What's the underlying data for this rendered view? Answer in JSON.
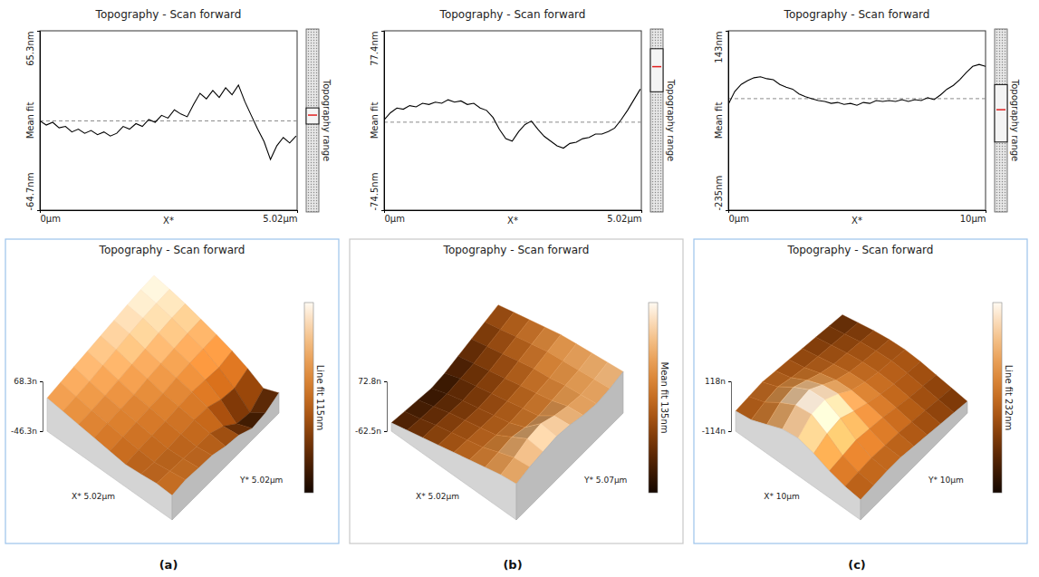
{
  "chart_data": [
    {
      "type": "line",
      "panel": "(a)",
      "title": "Topography - Scan forward",
      "x_label": "X*",
      "y_label": "Mean fit",
      "side_label": "Topography range",
      "color": "#000000",
      "x": [
        0,
        0.125,
        0.25,
        0.375,
        0.5,
        0.625,
        0.75,
        0.875,
        1,
        1.125,
        1.25,
        1.375,
        1.5,
        1.625,
        1.75,
        1.875,
        2,
        2.125,
        2.25,
        2.375,
        2.5,
        2.625,
        2.75,
        2.875,
        3,
        3.125,
        3.25,
        3.375,
        3.5,
        3.625,
        3.75,
        3.875,
        4,
        4.125,
        4.25,
        4.375,
        4.5,
        4.625,
        4.75,
        4.875,
        5
      ],
      "values": [
        0,
        -3,
        -1,
        -5,
        -4,
        -8,
        -6,
        -9,
        -7,
        -10,
        -8,
        -11,
        -9,
        -4,
        -6,
        -2,
        -4,
        1,
        -1,
        4,
        2,
        8,
        5,
        3,
        12,
        20,
        16,
        22,
        17,
        24,
        19,
        26,
        14,
        4,
        -6,
        -15,
        -28,
        -18,
        -12,
        -16,
        -11
      ],
      "mean_line": 0,
      "xlim": [
        0,
        5.02
      ],
      "xticks": [
        {
          "value": 0,
          "label": "0µm"
        },
        {
          "value": 5.02,
          "label": "5.02µm"
        }
      ],
      "ylim": [
        -64.7,
        65.3
      ],
      "yticks": [
        {
          "value": -64.7,
          "label": "-64.7nm"
        },
        {
          "value": 65.3,
          "label": "65.3nm"
        }
      ]
    },
    {
      "type": "surface",
      "title": "Topography - Scan forward",
      "x_label": "X* 5.02µm",
      "y_label": "Y* 5.02µm",
      "colorbar_label": "Line fit 115nm",
      "z": [
        [
          30,
          25,
          20,
          15,
          10,
          5,
          8,
          12,
          10
        ],
        [
          35,
          28,
          22,
          18,
          12,
          8,
          5,
          10,
          15
        ],
        [
          40,
          32,
          25,
          20,
          15,
          10,
          6,
          8,
          12
        ],
        [
          45,
          38,
          30,
          22,
          18,
          12,
          8,
          5,
          10
        ],
        [
          50,
          44,
          35,
          28,
          20,
          15,
          10,
          4,
          0
        ],
        [
          55,
          50,
          40,
          32,
          25,
          18,
          8,
          -10,
          -5
        ],
        [
          60,
          55,
          46,
          36,
          28,
          15,
          -5,
          -35,
          -20
        ],
        [
          64,
          58,
          50,
          40,
          30,
          12,
          -10,
          -40,
          -15
        ],
        [
          66,
          60,
          52,
          42,
          32,
          20,
          5,
          -15,
          0
        ]
      ],
      "zlim": [
        -46.3,
        68.3
      ],
      "zticks": [
        {
          "value": -46.3,
          "label": "-46.3n"
        },
        {
          "value": 68.3,
          "label": "68.3n"
        }
      ]
    },
    {
      "type": "line",
      "panel": "(b)",
      "title": "Topography - Scan forward",
      "x_label": "X*",
      "y_label": "Mean fit",
      "side_label": "Topography range",
      "color": "#000000",
      "x": [
        0,
        0.125,
        0.25,
        0.375,
        0.5,
        0.625,
        0.75,
        0.875,
        1,
        1.125,
        1.25,
        1.375,
        1.5,
        1.625,
        1.75,
        1.875,
        2,
        2.125,
        2.25,
        2.375,
        2.5,
        2.625,
        2.75,
        2.875,
        3,
        3.125,
        3.25,
        3.375,
        3.5,
        3.625,
        3.75,
        3.875,
        4,
        4.125,
        4.25,
        4.375,
        4.5,
        4.625,
        4.75,
        4.875,
        5
      ],
      "values": [
        2,
        8,
        12,
        11,
        14,
        13,
        16,
        15,
        17,
        16,
        19,
        17,
        18,
        15,
        16,
        12,
        10,
        4,
        -6,
        -14,
        -16,
        -8,
        -2,
        1,
        -6,
        -12,
        -16,
        -20,
        -22,
        -18,
        -17,
        -14,
        -13,
        -10,
        -10,
        -8,
        -5,
        2,
        10,
        19,
        28
      ],
      "mean_line": 0,
      "xlim": [
        0,
        5.02
      ],
      "xticks": [
        {
          "value": 0,
          "label": "0µm"
        },
        {
          "value": 5.02,
          "label": "5.02µm"
        }
      ],
      "ylim": [
        -74.5,
        77.4
      ],
      "yticks": [
        {
          "value": -74.5,
          "label": "-74.5nm"
        },
        {
          "value": 77.4,
          "label": "77.4nm"
        }
      ]
    },
    {
      "type": "surface",
      "title": "Topography - Scan forward",
      "x_label": "X* 5.02µm",
      "y_label": "Y* 5.07µm",
      "colorbar_label": "Mean fit 135nm",
      "z": [
        [
          -40,
          -30,
          -20,
          -10,
          0,
          10,
          20,
          30,
          35
        ],
        [
          -45,
          -35,
          -22,
          -12,
          -2,
          8,
          25,
          40,
          45
        ],
        [
          -50,
          -38,
          -25,
          -15,
          -5,
          5,
          30,
          55,
          50
        ],
        [
          -55,
          -40,
          -28,
          -18,
          -8,
          2,
          20,
          60,
          55
        ],
        [
          -50,
          -35,
          -25,
          -15,
          -5,
          5,
          15,
          45,
          50
        ],
        [
          -40,
          -30,
          -20,
          -10,
          0,
          10,
          20,
          35,
          40
        ],
        [
          -30,
          -20,
          -10,
          0,
          10,
          15,
          25,
          30,
          35
        ],
        [
          -20,
          -10,
          0,
          10,
          20,
          25,
          30,
          35,
          40
        ],
        [
          -10,
          0,
          10,
          20,
          30,
          35,
          40,
          45,
          50
        ]
      ],
      "zlim": [
        -62.5,
        72.8
      ],
      "zticks": [
        {
          "value": -62.5,
          "label": "-62.5n"
        },
        {
          "value": 72.8,
          "label": "72.8n"
        }
      ]
    },
    {
      "type": "line",
      "panel": "(c)",
      "title": "Topography - Scan forward",
      "x_label": "X*",
      "y_label": "Mean fit",
      "side_label": "Topography range",
      "color": "#000000",
      "x": [
        0,
        0.25,
        0.5,
        0.75,
        1,
        1.25,
        1.5,
        1.75,
        2,
        2.25,
        2.5,
        2.75,
        3,
        3.25,
        3.5,
        3.75,
        4,
        4.25,
        4.5,
        4.75,
        5,
        5.25,
        5.5,
        5.75,
        6,
        6.25,
        6.5,
        6.75,
        7,
        7.25,
        7.5,
        7.75,
        8,
        8.25,
        8.5,
        8.75,
        9,
        9.25,
        9.5,
        9.75,
        10
      ],
      "values": [
        -12,
        15,
        30,
        38,
        44,
        46,
        42,
        40,
        30,
        24,
        20,
        10,
        4,
        0,
        -4,
        -6,
        -10,
        -8,
        -12,
        -10,
        -14,
        -8,
        -10,
        -4,
        -6,
        -4,
        -6,
        -2,
        -6,
        -2,
        -4,
        2,
        -2,
        8,
        20,
        28,
        40,
        55,
        68,
        72,
        68
      ],
      "mean_line": 0,
      "xlim": [
        0,
        10
      ],
      "xticks": [
        {
          "value": 0,
          "label": "0µm"
        },
        {
          "value": 10,
          "label": "10µm"
        }
      ],
      "ylim": [
        -235,
        143
      ],
      "yticks": [
        {
          "value": -235,
          "label": "-235nm"
        },
        {
          "value": 143,
          "label": "143nm"
        }
      ]
    },
    {
      "type": "surface",
      "title": "Topography - Scan forward",
      "x_label": "X* 10µm",
      "y_label": "Y* 10µm",
      "colorbar_label": "Line fit 232nm",
      "z": [
        [
          -20,
          -10,
          20,
          50,
          60,
          40,
          10,
          -10,
          -20
        ],
        [
          -15,
          10,
          60,
          100,
          110,
          70,
          20,
          -5,
          -15
        ],
        [
          -10,
          20,
          70,
          110,
          115,
          80,
          30,
          0,
          -10
        ],
        [
          -20,
          0,
          40,
          70,
          80,
          50,
          20,
          -5,
          -10
        ],
        [
          -30,
          -15,
          10,
          30,
          35,
          25,
          10,
          -10,
          -20
        ],
        [
          -40,
          -25,
          -10,
          5,
          10,
          5,
          -5,
          -20,
          -30
        ],
        [
          -50,
          -35,
          -20,
          -10,
          -5,
          -10,
          -20,
          -30,
          -40
        ],
        [
          -60,
          -45,
          -30,
          -20,
          -15,
          -20,
          -30,
          -40,
          -50
        ],
        [
          -70,
          -55,
          -40,
          -30,
          -25,
          -30,
          -40,
          -50,
          -60
        ]
      ],
      "zlim": [
        -114,
        118
      ],
      "zticks": [
        {
          "value": -114,
          "label": "-114n"
        },
        {
          "value": 118,
          "label": "118n"
        }
      ]
    }
  ]
}
